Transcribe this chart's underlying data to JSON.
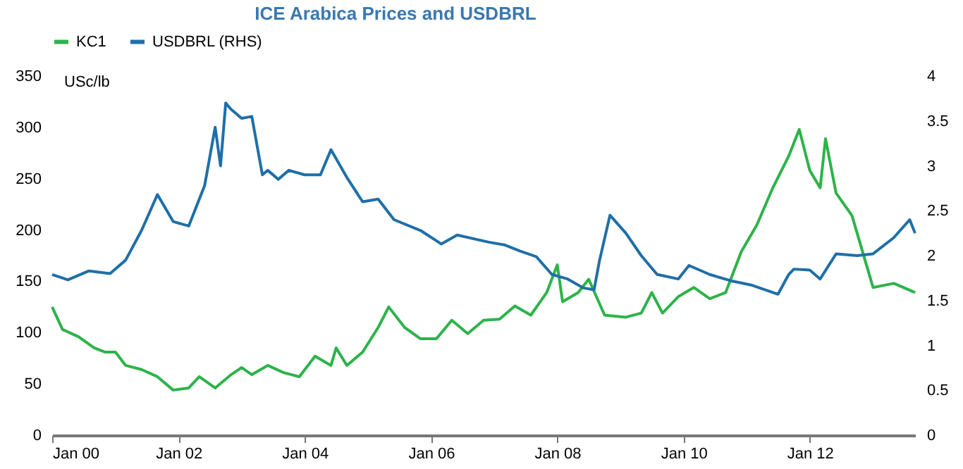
{
  "chart_data": {
    "type": "line",
    "title": "ICE Arabica Prices and USDBRL",
    "ylabel": "USc/lb",
    "xlim": [
      "2000-01",
      "2013-09"
    ],
    "xticks": [
      {
        "value": "2000-01",
        "label": "Jan 00"
      },
      {
        "value": "2002-01",
        "label": "Jan 02"
      },
      {
        "value": "2004-01",
        "label": "Jan 04"
      },
      {
        "value": "2006-01",
        "label": "Jan 06"
      },
      {
        "value": "2008-01",
        "label": "Jan 08"
      },
      {
        "value": "2010-01",
        "label": "Jan 10"
      },
      {
        "value": "2012-01",
        "label": "Jan 12"
      }
    ],
    "ylim": [
      0,
      350
    ],
    "yticks": [
      0,
      50,
      100,
      150,
      200,
      250,
      300,
      350
    ],
    "y2lim": [
      0,
      4
    ],
    "y2ticks": [
      0,
      0.5,
      1,
      1.5,
      2,
      2.5,
      3,
      3.5,
      4
    ],
    "legend": "top",
    "grid": false,
    "series": [
      {
        "name": "KC1",
        "color": "#2db34a",
        "x": [
          "2000-01",
          "2000-03",
          "2000-06",
          "2000-09",
          "2000-11",
          "2001-01",
          "2001-03",
          "2001-06",
          "2001-09",
          "2001-12",
          "2002-03",
          "2002-05",
          "2002-08",
          "2002-11",
          "2003-01",
          "2003-03",
          "2003-06",
          "2003-09",
          "2003-12",
          "2004-03",
          "2004-06",
          "2004-07",
          "2004-09",
          "2004-12",
          "2005-03",
          "2005-05",
          "2005-08",
          "2005-11",
          "2006-02",
          "2006-05",
          "2006-08",
          "2006-11",
          "2007-02",
          "2007-05",
          "2007-08",
          "2007-11",
          "2008-01",
          "2008-02",
          "2008-05",
          "2008-07",
          "2008-10",
          "2009-02",
          "2009-05",
          "2009-07",
          "2009-09",
          "2009-12",
          "2010-03",
          "2010-06",
          "2010-09",
          "2010-12",
          "2011-03",
          "2011-06",
          "2011-09",
          "2011-11",
          "2012-01",
          "2012-03",
          "2012-04",
          "2012-06",
          "2012-09",
          "2013-01",
          "2013-05",
          "2013-09"
        ],
        "values": [
          125,
          103,
          96,
          85,
          81,
          81,
          68,
          64,
          57,
          44,
          46,
          57,
          46,
          59,
          66,
          59,
          68,
          61,
          57,
          77,
          68,
          85,
          68,
          81,
          105,
          125,
          105,
          94,
          94,
          112,
          99,
          112,
          113,
          126,
          117,
          139,
          166,
          130,
          139,
          152,
          117,
          115,
          119,
          139,
          119,
          135,
          144,
          133,
          139,
          179,
          205,
          241,
          272,
          298,
          258,
          241,
          289,
          236,
          214,
          144,
          148,
          139
        ]
      },
      {
        "name": "USDBRL (RHS)",
        "color": "#1f6fa8",
        "axis": "y2",
        "x": [
          "2000-01",
          "2000-04",
          "2000-08",
          "2000-12",
          "2001-03",
          "2001-06",
          "2001-09",
          "2001-12",
          "2002-03",
          "2002-06",
          "2002-08",
          "2002-09",
          "2002-10",
          "2002-11",
          "2003-01",
          "2003-03",
          "2003-05",
          "2003-06",
          "2003-08",
          "2003-10",
          "2004-01",
          "2004-04",
          "2004-06",
          "2004-09",
          "2004-12",
          "2005-03",
          "2005-06",
          "2005-11",
          "2006-03",
          "2006-06",
          "2006-12",
          "2007-03",
          "2007-06",
          "2007-09",
          "2007-12",
          "2008-03",
          "2008-06",
          "2008-08",
          "2008-09",
          "2008-11",
          "2009-02",
          "2009-05",
          "2009-08",
          "2009-12",
          "2010-02",
          "2010-06",
          "2010-10",
          "2011-02",
          "2011-07",
          "2011-09",
          "2011-10",
          "2012-01",
          "2012-03",
          "2012-06",
          "2012-10",
          "2013-01",
          "2013-05",
          "2013-08",
          "2013-09"
        ],
        "values": [
          1.79,
          1.73,
          1.83,
          1.8,
          1.95,
          2.28,
          2.68,
          2.38,
          2.33,
          2.78,
          3.43,
          3.0,
          3.7,
          3.63,
          3.53,
          3.55,
          2.9,
          2.95,
          2.85,
          2.95,
          2.9,
          2.9,
          3.18,
          2.87,
          2.6,
          2.63,
          2.4,
          2.28,
          2.13,
          2.23,
          2.15,
          2.12,
          2.05,
          1.99,
          1.79,
          1.74,
          1.64,
          1.62,
          1.94,
          2.45,
          2.25,
          2.0,
          1.79,
          1.74,
          1.89,
          1.79,
          1.72,
          1.67,
          1.57,
          1.79,
          1.85,
          1.84,
          1.74,
          2.02,
          2.0,
          2.02,
          2.2,
          2.4,
          2.25
        ]
      }
    ]
  }
}
